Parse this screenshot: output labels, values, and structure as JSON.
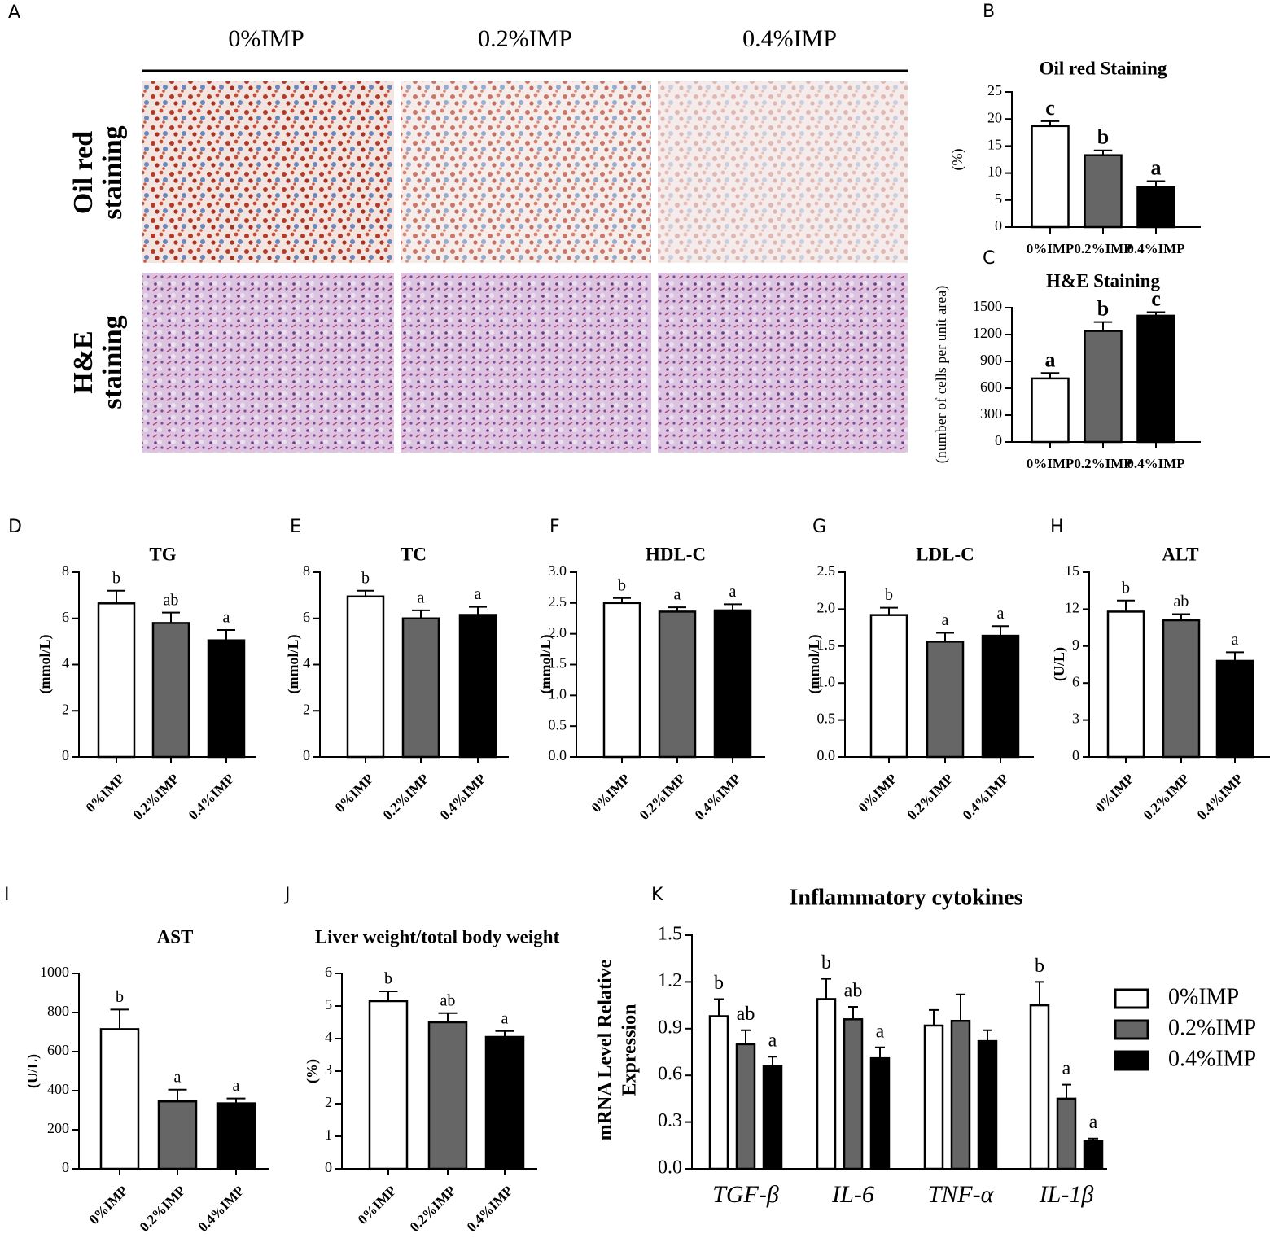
{
  "panel_a": {
    "label": "A",
    "columns": [
      "0%IMP",
      "0.2%IMP",
      "0.4%IMP"
    ],
    "rows": [
      [
        "Oil red",
        "staining"
      ],
      [
        "H&E",
        "staining"
      ]
    ]
  },
  "chart_data": [
    {
      "type": "bar",
      "label": "B",
      "title": "Oil red Staining",
      "y_label": "(%)",
      "categories": [
        "0%IMP",
        "0.2%IMP",
        "0.4%IMP"
      ],
      "values": [
        18.7,
        13.3,
        7.4
      ],
      "errors": [
        0.9,
        0.9,
        1.1
      ],
      "annotations": [
        "c",
        "b",
        "a"
      ],
      "colors": [
        "#ffffff",
        "#666666",
        "#000000"
      ],
      "ylim": [
        0,
        25
      ],
      "yticks": [
        0,
        5,
        10,
        15,
        20,
        25
      ]
    },
    {
      "type": "bar",
      "label": "C",
      "title": "H&E Staining",
      "y_label": "(number of cells per unit area)",
      "categories": [
        "0%IMP",
        "0.2%IMP",
        "0.4%IMP"
      ],
      "values": [
        710,
        1240,
        1410
      ],
      "errors": [
        60,
        100,
        40
      ],
      "annotations": [
        "a",
        "b",
        "c"
      ],
      "colors": [
        "#ffffff",
        "#666666",
        "#000000"
      ],
      "ylim": [
        0,
        1500
      ],
      "yticks": [
        0,
        300,
        600,
        900,
        1200,
        1500
      ]
    },
    {
      "type": "bar",
      "label": "D",
      "title": "TG",
      "y_label": "(mmol/L)",
      "categories": [
        "0%IMP",
        "0.2%IMP",
        "0.4%IMP"
      ],
      "values": [
        6.65,
        5.8,
        5.05
      ],
      "errors": [
        0.55,
        0.45,
        0.45
      ],
      "annotations": [
        "b",
        "ab",
        "a"
      ],
      "colors": [
        "#ffffff",
        "#666666",
        "#000000"
      ],
      "ylim": [
        0,
        8
      ],
      "yticks": [
        0,
        2,
        4,
        6,
        8
      ]
    },
    {
      "type": "bar",
      "label": "E",
      "title": "TC",
      "y_label": "(mmol/L)",
      "categories": [
        "0%IMP",
        "0.2%IMP",
        "0.4%IMP"
      ],
      "values": [
        6.95,
        6.0,
        6.15
      ],
      "errors": [
        0.25,
        0.35,
        0.35
      ],
      "annotations": [
        "b",
        "a",
        "a"
      ],
      "colors": [
        "#ffffff",
        "#666666",
        "#000000"
      ],
      "ylim": [
        0,
        8
      ],
      "yticks": [
        0,
        2,
        4,
        6,
        8
      ]
    },
    {
      "type": "bar",
      "label": "F",
      "title": "HDL-C",
      "y_label": "(mmol/L)",
      "categories": [
        "0%IMP",
        "0.2%IMP",
        "0.4%IMP"
      ],
      "values": [
        2.5,
        2.36,
        2.38
      ],
      "errors": [
        0.08,
        0.07,
        0.1
      ],
      "annotations": [
        "b",
        "a",
        "a"
      ],
      "colors": [
        "#ffffff",
        "#666666",
        "#000000"
      ],
      "ylim": [
        0,
        3
      ],
      "yticks": [
        {
          "value": 0,
          "label": "0.0"
        },
        0.5,
        {
          "value": 1,
          "label": "1.0"
        },
        1.5,
        {
          "value": 2,
          "label": "2.0"
        },
        2.5,
        {
          "value": 3,
          "label": "3.0"
        }
      ]
    },
    {
      "type": "bar",
      "label": "G",
      "title": "LDL-C",
      "y_label": "(mmol/L)",
      "categories": [
        "0%IMP",
        "0.2%IMP",
        "0.4%IMP"
      ],
      "values": [
        1.92,
        1.56,
        1.64
      ],
      "errors": [
        0.1,
        0.12,
        0.13
      ],
      "annotations": [
        "b",
        "a",
        "a"
      ],
      "colors": [
        "#ffffff",
        "#666666",
        "#000000"
      ],
      "ylim": [
        0,
        2.5
      ],
      "yticks": [
        {
          "value": 0,
          "label": "0.0"
        },
        0.5,
        {
          "value": 1,
          "label": "1.0"
        },
        1.5,
        {
          "value": 2,
          "label": "2.0"
        },
        2.5
      ]
    },
    {
      "type": "bar",
      "label": "H",
      "title": "ALT",
      "y_label": "(U/L)",
      "categories": [
        "0%IMP",
        "0.2%IMP",
        "0.4%IMP"
      ],
      "values": [
        11.8,
        11.1,
        7.8
      ],
      "errors": [
        0.9,
        0.5,
        0.7
      ],
      "annotations": [
        "b",
        "ab",
        "a"
      ],
      "colors": [
        "#ffffff",
        "#666666",
        "#000000"
      ],
      "ylim": [
        0,
        15
      ],
      "yticks": [
        0,
        3,
        6,
        9,
        12,
        15
      ]
    },
    {
      "type": "bar",
      "label": "I",
      "title": "AST",
      "y_label": "(U/L)",
      "categories": [
        "0%IMP",
        "0.2%IMP",
        "0.4%IMP"
      ],
      "values": [
        715,
        345,
        335
      ],
      "errors": [
        100,
        60,
        25
      ],
      "annotations": [
        "b",
        "a",
        "a"
      ],
      "colors": [
        "#ffffff",
        "#666666",
        "#000000"
      ],
      "ylim": [
        0,
        1000
      ],
      "yticks": [
        0,
        200,
        400,
        600,
        800,
        1000
      ]
    },
    {
      "type": "bar",
      "label": "J",
      "title": "Liver weight/total body weight",
      "y_label": "(%)",
      "categories": [
        "0%IMP",
        "0.2%IMP",
        "0.4%IMP"
      ],
      "values": [
        5.15,
        4.5,
        4.05
      ],
      "errors": [
        0.3,
        0.28,
        0.18
      ],
      "annotations": [
        "b",
        "ab",
        "a"
      ],
      "colors": [
        "#ffffff",
        "#666666",
        "#000000"
      ],
      "ylim": [
        0,
        6
      ],
      "yticks": [
        0,
        1,
        2,
        3,
        4,
        5,
        6
      ]
    },
    {
      "type": "grouped_bar",
      "label": "K",
      "title": "Inflammatory cytokines",
      "y_label": [
        "mRNA Level Relative",
        "Expression"
      ],
      "categories": [
        "TGF-β",
        "IL-6",
        "TNF-α",
        "IL-1β"
      ],
      "ylim": [
        0,
        1.5
      ],
      "yticks": [
        {
          "value": 0,
          "label": "0.0"
        },
        0.3,
        0.6,
        0.9,
        1.2,
        1.5
      ],
      "legend": "right",
      "series": [
        {
          "name": "0%IMP",
          "color": "#ffffff",
          "values": [
            0.98,
            1.09,
            0.92,
            1.05
          ],
          "errors": [
            0.11,
            0.13,
            0.1,
            0.15
          ],
          "annotations": [
            "b",
            "b",
            null,
            "b"
          ]
        },
        {
          "name": "0.2%IMP",
          "color": "#666666",
          "values": [
            0.8,
            0.96,
            0.95,
            0.45
          ],
          "errors": [
            0.09,
            0.08,
            0.17,
            0.09
          ],
          "annotations": [
            "ab",
            "ab",
            null,
            "a"
          ]
        },
        {
          "name": "0.4%IMP",
          "color": "#000000",
          "values": [
            0.66,
            0.71,
            0.82,
            0.18
          ],
          "errors": [
            0.06,
            0.07,
            0.07,
            0.015
          ],
          "annotations": [
            "a",
            "a",
            null,
            "a"
          ]
        }
      ]
    }
  ]
}
